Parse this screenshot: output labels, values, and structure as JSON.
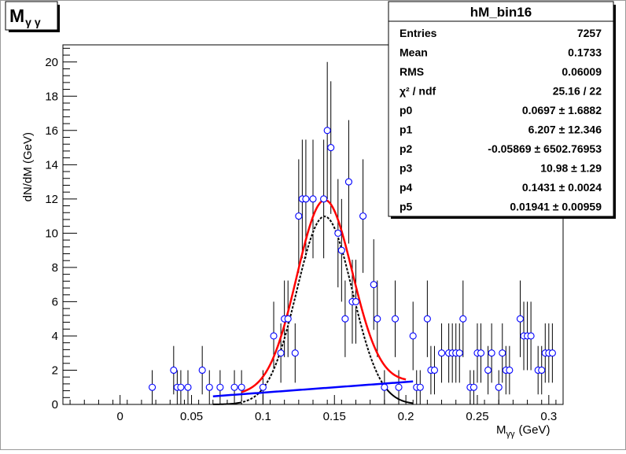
{
  "chart_data": {
    "type": "scatter",
    "title": "Mγ γ",
    "title_main": "M",
    "title_sub": "γ γ",
    "xlabel_main": "M",
    "xlabel_sub": "γγ",
    "xlabel_unit": "(GeV)",
    "ylabel": "dN/dM (GeV)",
    "xlim": [
      -0.04,
      0.31
    ],
    "ylim": [
      0,
      21
    ],
    "x_ticks": [
      0,
      0.05,
      0.1,
      0.15,
      0.2,
      0.25,
      0.3
    ],
    "x_tick_labels": [
      "0",
      "0.05",
      "0.1",
      "0.15",
      "0.2",
      "0.25",
      "0.3"
    ],
    "y_ticks": [
      0,
      2,
      4,
      6,
      8,
      10,
      12,
      14,
      16,
      18,
      20
    ],
    "y_tick_labels": [
      "0",
      "2",
      "4",
      "6",
      "8",
      "10",
      "12",
      "14",
      "16",
      "18",
      "20"
    ],
    "grid": false,
    "points": [
      {
        "x": 0.0225,
        "y": 1
      },
      {
        "x": 0.0375,
        "y": 2
      },
      {
        "x": 0.04,
        "y": 1
      },
      {
        "x": 0.0425,
        "y": 1
      },
      {
        "x": 0.0475,
        "y": 1
      },
      {
        "x": 0.0575,
        "y": 2
      },
      {
        "x": 0.0625,
        "y": 1
      },
      {
        "x": 0.07,
        "y": 1
      },
      {
        "x": 0.08,
        "y": 1
      },
      {
        "x": 0.085,
        "y": 1
      },
      {
        "x": 0.1,
        "y": 1
      },
      {
        "x": 0.1075,
        "y": 4
      },
      {
        "x": 0.1125,
        "y": 3
      },
      {
        "x": 0.115,
        "y": 5
      },
      {
        "x": 0.1175,
        "y": 5
      },
      {
        "x": 0.1225,
        "y": 3
      },
      {
        "x": 0.125,
        "y": 11
      },
      {
        "x": 0.1275,
        "y": 12
      },
      {
        "x": 0.13,
        "y": 12
      },
      {
        "x": 0.135,
        "y": 12
      },
      {
        "x": 0.1425,
        "y": 12
      },
      {
        "x": 0.145,
        "y": 16
      },
      {
        "x": 0.1475,
        "y": 15
      },
      {
        "x": 0.1525,
        "y": 10
      },
      {
        "x": 0.155,
        "y": 9
      },
      {
        "x": 0.1575,
        "y": 5
      },
      {
        "x": 0.16,
        "y": 13
      },
      {
        "x": 0.1625,
        "y": 6
      },
      {
        "x": 0.165,
        "y": 6
      },
      {
        "x": 0.17,
        "y": 11
      },
      {
        "x": 0.1775,
        "y": 7
      },
      {
        "x": 0.18,
        "y": 5
      },
      {
        "x": 0.185,
        "y": 1
      },
      {
        "x": 0.1925,
        "y": 5
      },
      {
        "x": 0.195,
        "y": 1
      },
      {
        "x": 0.205,
        "y": 4
      },
      {
        "x": 0.2075,
        "y": 1
      },
      {
        "x": 0.21,
        "y": 1
      },
      {
        "x": 0.215,
        "y": 5
      },
      {
        "x": 0.2175,
        "y": 2
      },
      {
        "x": 0.22,
        "y": 2
      },
      {
        "x": 0.225,
        "y": 3
      },
      {
        "x": 0.23,
        "y": 3
      },
      {
        "x": 0.2325,
        "y": 3
      },
      {
        "x": 0.235,
        "y": 3
      },
      {
        "x": 0.2375,
        "y": 3
      },
      {
        "x": 0.24,
        "y": 5
      },
      {
        "x": 0.245,
        "y": 1
      },
      {
        "x": 0.2475,
        "y": 1
      },
      {
        "x": 0.25,
        "y": 3
      },
      {
        "x": 0.2525,
        "y": 3
      },
      {
        "x": 0.2575,
        "y": 2
      },
      {
        "x": 0.26,
        "y": 3
      },
      {
        "x": 0.265,
        "y": 1
      },
      {
        "x": 0.2675,
        "y": 3
      },
      {
        "x": 0.27,
        "y": 2
      },
      {
        "x": 0.2725,
        "y": 2
      },
      {
        "x": 0.28,
        "y": 5
      },
      {
        "x": 0.2825,
        "y": 4
      },
      {
        "x": 0.285,
        "y": 4
      },
      {
        "x": 0.2875,
        "y": 4
      },
      {
        "x": 0.2925,
        "y": 2
      },
      {
        "x": 0.295,
        "y": 2
      },
      {
        "x": 0.2975,
        "y": 3
      },
      {
        "x": 0.3,
        "y": 3
      },
      {
        "x": 0.3025,
        "y": 3
      }
    ],
    "fit": {
      "xrange": [
        0.065,
        0.205
      ],
      "gauss": {
        "amplitude": 10.98,
        "mean": 0.1431,
        "sigma": 0.01941
      },
      "background": {
        "p0": 0.0697,
        "p1": 6.207
      },
      "total_color": "#ff0000",
      "background_color": "#0000ff",
      "gauss_color": "#000000",
      "marker_color": "#0000ff"
    },
    "stats": {
      "name": "hM_bin16",
      "rows": [
        {
          "label": "Entries",
          "value": "7257"
        },
        {
          "label": "Mean",
          "value": "0.1733"
        },
        {
          "label": "RMS",
          "value": "0.06009"
        },
        {
          "label": "χ² / ndf",
          "value": "25.16 / 22"
        },
        {
          "label": "p0",
          "value": "0.0697 ± 1.6882"
        },
        {
          "label": "p1",
          "value": "6.207 ± 12.346"
        },
        {
          "label": "p2",
          "value": "-0.05869 ± 6502.76953"
        },
        {
          "label": "p3",
          "value": "10.98 ± 1.29"
        },
        {
          "label": "p4",
          "value": "0.1431 ± 0.0024"
        },
        {
          "label": "p5",
          "value": "0.01941 ± 0.00959"
        }
      ]
    }
  }
}
